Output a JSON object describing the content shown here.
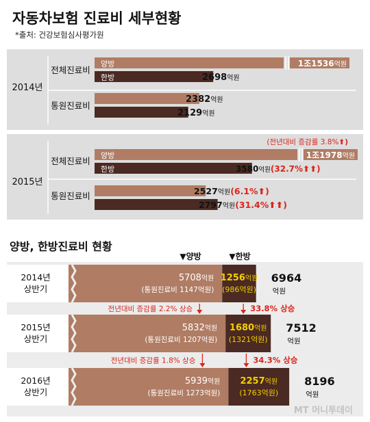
{
  "header": {
    "title": "자동차보험 진료비 세부현황",
    "source": "*출처: 건강보험심사평가원"
  },
  "colors": {
    "western": "#b07c64",
    "oriental": "#4a2a22",
    "red": "#d9251c",
    "yellow": "#f5d000",
    "panel": "#dedede",
    "bottom_bg": "#ececec"
  },
  "chart_data": [
    {
      "type": "bar",
      "title": "",
      "groups": [
        {
          "year": "2014년",
          "rows": [
            {
              "label": "전체진료비",
              "bars": [
                {
                  "name": "양방",
                  "value": 11536,
                  "text": "1조1536",
                  "unit": "억원",
                  "broken": true
                },
                {
                  "name": "한방",
                  "value": 2698,
                  "text": "2698",
                  "unit": "억원"
                }
              ]
            },
            {
              "label": "통원진료비",
              "bars": [
                {
                  "name": "양방",
                  "value": 2382,
                  "text": "2382",
                  "unit": "억원"
                },
                {
                  "name": "한방",
                  "value": 2129,
                  "text": "2129",
                  "unit": "억원"
                }
              ]
            }
          ]
        },
        {
          "year": "2015년",
          "note": "(전년대비 증감률 3.8%",
          "note_arrow": "⬆)",
          "rows": [
            {
              "label": "전체진료비",
              "bars": [
                {
                  "name": "양방",
                  "value": 11978,
                  "text": "1조1978",
                  "unit": "억원",
                  "broken": true
                },
                {
                  "name": "한방",
                  "value": 3580,
                  "text": "3580",
                  "unit": "억원",
                  "change": "(32.7%",
                  "change_arrow": "⬆⬆)"
                }
              ]
            },
            {
              "label": "통원진료비",
              "bars": [
                {
                  "name": "양방",
                  "value": 2527,
                  "text": "2527",
                  "unit": "억원",
                  "change": "(6.1%",
                  "change_arrow": "⬆)"
                },
                {
                  "name": "한방",
                  "value": 2797,
                  "text": "2797",
                  "unit": "억원",
                  "change": "(31.4%",
                  "change_arrow": "⬆⬆)"
                }
              ]
            }
          ]
        }
      ]
    },
    {
      "type": "bar",
      "title": "양방, 한방진료비 현황",
      "legend": [
        "▼양방",
        "▼한방"
      ],
      "rows": [
        {
          "period": [
            "2014년",
            "상반기"
          ],
          "western": 5708,
          "western_unit": "억원",
          "western_sub": "(통원진료비 1147억원)",
          "oriental": 1256,
          "oriental_unit": "억원",
          "oriental_sub": "(986억원)",
          "total": "6964",
          "total_unit": "억원"
        },
        {
          "period": [
            "2015년",
            "상반기"
          ],
          "western": 5832,
          "western_unit": "억원",
          "western_sub": "(통원진료비 1207억원)",
          "oriental": 1680,
          "oriental_unit": "억원",
          "oriental_sub": "(1321억원)",
          "total": "7512",
          "total_unit": "억원"
        },
        {
          "period": [
            "2016년",
            "상반기"
          ],
          "western": 5939,
          "western_unit": "억원",
          "western_sub": "(통원진료비 1273억원)",
          "oriental": 2257,
          "oriental_unit": "억원",
          "oriental_sub": "(1763억원)",
          "total": "8196",
          "total_unit": "억원"
        }
      ],
      "changes": [
        {
          "western": "전년대비 증감률 2.2% 상승",
          "oriental": "33.8% 상승"
        },
        {
          "western": "전년대비 증감률 1.8% 상승",
          "oriental": "34.3% 상승"
        }
      ]
    }
  ],
  "watermark": "MT 머니투데이"
}
